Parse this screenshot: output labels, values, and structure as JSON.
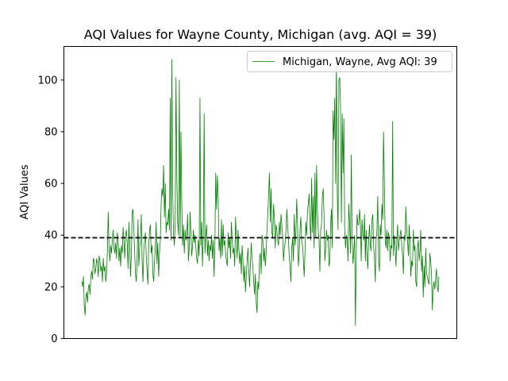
{
  "chart_data": {
    "type": "line",
    "title": "AQI Values for Wayne County, Michigan (avg. AQI = 39)",
    "xlabel": "",
    "ylabel": "AQI Values",
    "ylim": [
      0,
      113
    ],
    "yticks": [
      0,
      20,
      40,
      60,
      80,
      100
    ],
    "xticks": [],
    "grid": false,
    "legend_position": "top-right",
    "reference_line": {
      "value": 39,
      "style": "dashed",
      "color": "#000000"
    },
    "series": [
      {
        "name": "Michigan, Wayne, Avg AQI: 39",
        "color": "#008000",
        "values": [
          22,
          20,
          24,
          13,
          9,
          16,
          18,
          14,
          20,
          21,
          17,
          24,
          26,
          23,
          31,
          30,
          25,
          27,
          31,
          29,
          24,
          32,
          30,
          26,
          28,
          22,
          31,
          26,
          28,
          22,
          25,
          34,
          49,
          35,
          30,
          36,
          33,
          38,
          42,
          35,
          33,
          37,
          31,
          41,
          38,
          30,
          35,
          28,
          36,
          33,
          43,
          38,
          31,
          40,
          42,
          37,
          27,
          45,
          35,
          24,
          33,
          49,
          50,
          42,
          33,
          25,
          22,
          31,
          46,
          28,
          35,
          38,
          48,
          30,
          22,
          34,
          38,
          41,
          32,
          26,
          21,
          36,
          42,
          44,
          33,
          36,
          25,
          22,
          30,
          35,
          45,
          29,
          37,
          24,
          33,
          38,
          52,
          58,
          55,
          67,
          47,
          60,
          41,
          45,
          44,
          50,
          42,
          93,
          38,
          108,
          56,
          40,
          36,
          45,
          101,
          62,
          45,
          40,
          100,
          39,
          80,
          52,
          36,
          44,
          33,
          42,
          38,
          40,
          48,
          30,
          35,
          49,
          41,
          32,
          36,
          42,
          37,
          40,
          35,
          31,
          29,
          38,
          32,
          93,
          36,
          45,
          28,
          40,
          87,
          33,
          40,
          44,
          32,
          38,
          30,
          36,
          34,
          40,
          31,
          38,
          24,
          36,
          64,
          50,
          63,
          55,
          34,
          39,
          31,
          46,
          32,
          44,
          36,
          38,
          33,
          30,
          28,
          41,
          35,
          39,
          31,
          45,
          38,
          33,
          35,
          28,
          47,
          39,
          31,
          42,
          35,
          29,
          33,
          25,
          36,
          30,
          22,
          28,
          18,
          24,
          30,
          35,
          26,
          20,
          29,
          37,
          31,
          27,
          22,
          17,
          25,
          14,
          10,
          22,
          19,
          31,
          33,
          25,
          40,
          38,
          30,
          35,
          28,
          33,
          42,
          48,
          56,
          64,
          45,
          58,
          41,
          39,
          52,
          47,
          35,
          44,
          42,
          38,
          36,
          45,
          40,
          48,
          44,
          39,
          30,
          35,
          37,
          42,
          50,
          44,
          38,
          31,
          28,
          22,
          35,
          39,
          30,
          48,
          36,
          41,
          54,
          44,
          28,
          33,
          42,
          47,
          38,
          36,
          31,
          24,
          33,
          45,
          40,
          49,
          52,
          56,
          45,
          38,
          62,
          41,
          55,
          35,
          64,
          39,
          67,
          50,
          42,
          38,
          26,
          42,
          44,
          55,
          58,
          48,
          30,
          35,
          42,
          38,
          40,
          28,
          30,
          44,
          50,
          35,
          88,
          77,
          93,
          60,
          108,
          56,
          42,
          100,
          101,
          90,
          45,
          87,
          64,
          85,
          42,
          35,
          40,
          39,
          30,
          52,
          44,
          33,
          71,
          38,
          29,
          34,
          40,
          5,
          33,
          48,
          44,
          44,
          50,
          45,
          30,
          46,
          40,
          38,
          48,
          30,
          42,
          33,
          27,
          38,
          44,
          36,
          34,
          46,
          48,
          36,
          31,
          22,
          38,
          42,
          55,
          30,
          26,
          44,
          40,
          52,
          46,
          80,
          60,
          38,
          35,
          42,
          34,
          41,
          39,
          30,
          36,
          35,
          84,
          32,
          40,
          36,
          28,
          38,
          44,
          34,
          38,
          40,
          42,
          36,
          32,
          25,
          40,
          38,
          51,
          42,
          38,
          32,
          44,
          36,
          24,
          30,
          28,
          42,
          34,
          36,
          22,
          20,
          35,
          38,
          30,
          34,
          42,
          26,
          32,
          16,
          28,
          20,
          35,
          25,
          24,
          22,
          21,
          33,
          30,
          25,
          11,
          20,
          22,
          19,
          23,
          27,
          20,
          18,
          24
        ]
      }
    ]
  }
}
